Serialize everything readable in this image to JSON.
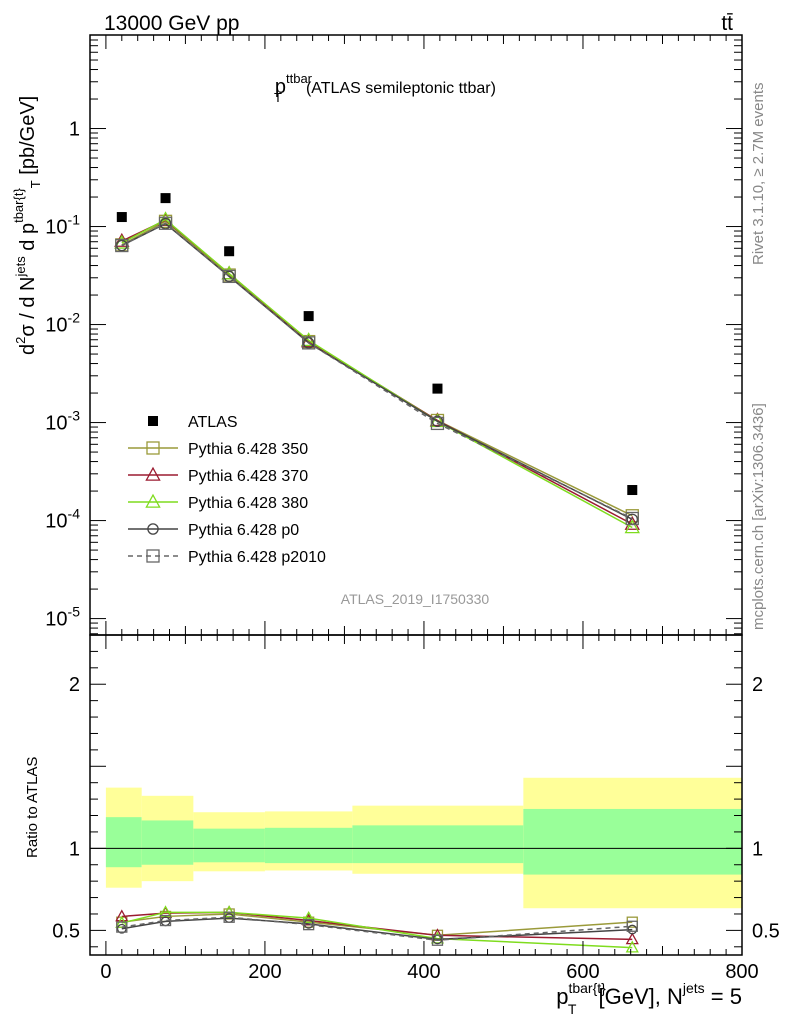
{
  "header": {
    "energy_label": "13000 GeV pp",
    "process_label": "tt̄"
  },
  "side": {
    "rivet": "Rivet 3.1.10, ≥ 2.7M events",
    "site": "mcplots.cern.ch [arXiv:1306.3436]"
  },
  "analysis_id": "ATLAS_2019_I1750330",
  "chart_data": [
    {
      "type": "scatter",
      "title": "p_T^{ttbar} (ATLAS semileptonic ttbar)",
      "title_main": "p",
      "title_sup": "ttbar",
      "title_sub": "T",
      "title_rest": "(ATLAS semileptonic ttbar)",
      "ylabel": "d²σ / d N^{jets} d p^{tbar{t}}_T [pb/GeV]",
      "yscale": "log",
      "xlim": [
        -20,
        800
      ],
      "ylim": [
        6.8e-06,
        9
      ],
      "grid": false,
      "legend_position": "left",
      "bin_edges": [
        0,
        45,
        110,
        200,
        310,
        525,
        800
      ],
      "series": [
        {
          "name": "ATLAS",
          "color": "#000000",
          "marker": "filled-square",
          "line": "none",
          "x": [
            20,
            75,
            155,
            255,
            417,
            662
          ],
          "y": [
            0.125,
            0.195,
            0.056,
            0.0122,
            0.00222,
            0.000205
          ]
        },
        {
          "name": "Pythia 6.428 350",
          "color": "#9a9a3a",
          "marker": "open-square",
          "line": "solid",
          "x": [
            20,
            75,
            155,
            255,
            417,
            662
          ],
          "y": [
            0.065,
            0.113,
            0.032,
            0.0067,
            0.00105,
            0.000112
          ]
        },
        {
          "name": "Pythia 6.428 370",
          "color": "#9b1b30",
          "marker": "open-triangle",
          "line": "solid",
          "x": [
            20,
            75,
            155,
            255,
            417,
            662
          ],
          "y": [
            0.071,
            0.116,
            0.033,
            0.0067,
            0.00105,
            9.2e-05
          ]
        },
        {
          "name": "Pythia 6.428 380",
          "color": "#7fdc1e",
          "marker": "open-triangle",
          "line": "solid",
          "x": [
            20,
            75,
            155,
            255,
            417,
            662
          ],
          "y": [
            0.068,
            0.118,
            0.033,
            0.0069,
            0.00103,
            8.5e-05
          ]
        },
        {
          "name": "Pythia 6.428 p0",
          "color": "#444444",
          "marker": "open-circle",
          "line": "solid",
          "x": [
            20,
            75,
            155,
            255,
            417,
            662
          ],
          "y": [
            0.064,
            0.107,
            0.031,
            0.0065,
            0.00103,
            0.000103
          ]
        },
        {
          "name": "Pythia 6.428 p2010",
          "color": "#666666",
          "marker": "open-square",
          "line": "dashed",
          "x": [
            20,
            75,
            155,
            255,
            417,
            662
          ],
          "y": [
            0.064,
            0.108,
            0.031,
            0.0065,
            0.00098,
            0.000105
          ]
        }
      ],
      "yticks": [
        {
          "value": 1,
          "base": "1",
          "exp": ""
        },
        {
          "value": 0.1,
          "base": "10",
          "exp": "-1"
        },
        {
          "value": 0.01,
          "base": "10",
          "exp": "-2"
        },
        {
          "value": 0.001,
          "base": "10",
          "exp": "-3"
        },
        {
          "value": 0.0001,
          "base": "10",
          "exp": "-4"
        },
        {
          "value": 1e-05,
          "base": "10",
          "exp": "-5"
        }
      ]
    },
    {
      "type": "scatter",
      "ylabel": "Ratio to ATLAS",
      "xlabel": "p^{tbar{t}}_T [GeV], N^{jets} = 5",
      "xlim": [
        -20,
        800
      ],
      "ylim": [
        0.35,
        2.3
      ],
      "xticks": [
        0,
        200,
        400,
        600,
        800
      ],
      "yticks": [
        0.5,
        1,
        2
      ],
      "bands": [
        {
          "x0": 0,
          "x1": 45,
          "inner": [
            0.885,
            1.19
          ],
          "outer": [
            0.76,
            1.37
          ]
        },
        {
          "x0": 45,
          "x1": 110,
          "inner": [
            0.9,
            1.17
          ],
          "outer": [
            0.8,
            1.32
          ]
        },
        {
          "x0": 110,
          "x1": 200,
          "inner": [
            0.915,
            1.12
          ],
          "outer": [
            0.86,
            1.22
          ]
        },
        {
          "x0": 200,
          "x1": 310,
          "inner": [
            0.91,
            1.125
          ],
          "outer": [
            0.865,
            1.225
          ]
        },
        {
          "x0": 310,
          "x1": 525,
          "inner": [
            0.91,
            1.14
          ],
          "outer": [
            0.845,
            1.26
          ]
        },
        {
          "x0": 525,
          "x1": 800,
          "inner": [
            0.84,
            1.24
          ],
          "outer": [
            0.635,
            1.43
          ]
        }
      ],
      "series": [
        {
          "name": "Pythia 6.428 350",
          "color": "#9a9a3a",
          "marker": "open-square",
          "line": "solid",
          "x": [
            20,
            75,
            155,
            255,
            417,
            662
          ],
          "y": [
            0.55,
            0.585,
            0.6,
            0.55,
            0.47,
            0.55
          ]
        },
        {
          "name": "Pythia 6.428 370",
          "color": "#9b1b30",
          "marker": "open-triangle",
          "line": "solid",
          "x": [
            20,
            75,
            155,
            255,
            417,
            662
          ],
          "y": [
            0.585,
            0.605,
            0.61,
            0.56,
            0.47,
            0.445
          ]
        },
        {
          "name": "Pythia 6.428 380",
          "color": "#7fdc1e",
          "marker": "open-triangle",
          "line": "solid",
          "x": [
            20,
            75,
            155,
            255,
            417,
            662
          ],
          "y": [
            0.545,
            0.61,
            0.61,
            0.575,
            0.45,
            0.395
          ]
        },
        {
          "name": "Pythia 6.428 p0",
          "color": "#444444",
          "marker": "open-circle",
          "line": "solid",
          "x": [
            20,
            75,
            155,
            255,
            417,
            662
          ],
          "y": [
            0.51,
            0.555,
            0.575,
            0.54,
            0.445,
            0.505
          ]
        },
        {
          "name": "Pythia 6.428 p2010",
          "color": "#666666",
          "marker": "open-square",
          "line": "dashed",
          "x": [
            20,
            75,
            155,
            255,
            417,
            662
          ],
          "y": [
            0.52,
            0.56,
            0.58,
            0.535,
            0.44,
            0.525
          ]
        }
      ]
    }
  ]
}
